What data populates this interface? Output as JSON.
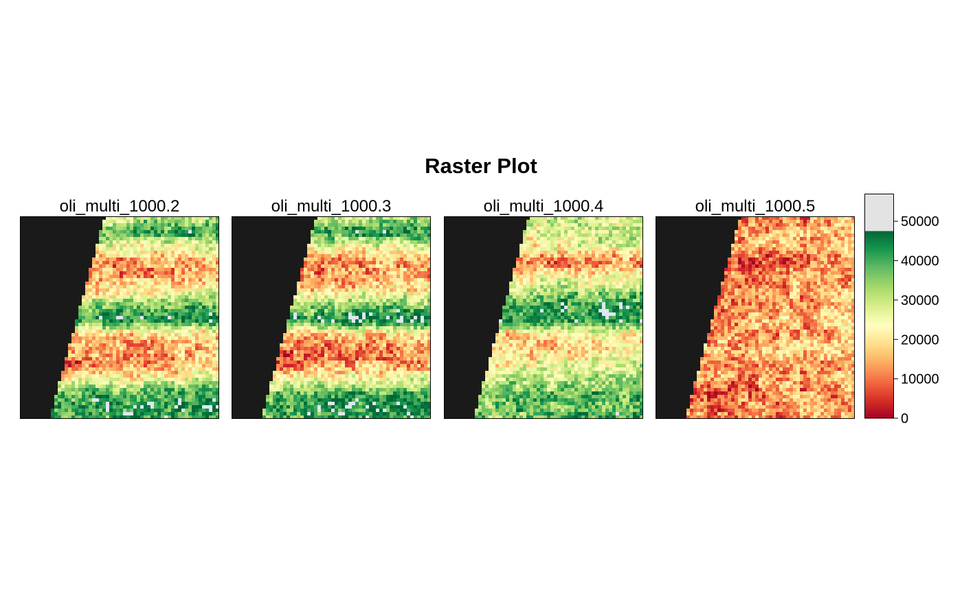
{
  "chart_data": {
    "type": "heatmap",
    "title": "Raster Plot",
    "panels": [
      {
        "name": "oli_multi_1000.2",
        "profile": [
          30,
          40,
          24,
          12,
          14,
          20,
          34,
          46,
          18,
          13,
          12,
          22,
          38,
          44,
          40
        ]
      },
      {
        "name": "oli_multi_1000.3",
        "profile": [
          30,
          40,
          24,
          12,
          13,
          19,
          33,
          46,
          18,
          12,
          12,
          22,
          38,
          44,
          40
        ]
      },
      {
        "name": "oli_multi_1000.4",
        "profile": [
          28,
          26,
          24,
          8,
          22,
          30,
          42,
          44,
          20,
          18,
          24,
          30,
          36,
          38,
          36
        ]
      },
      {
        "name": "oli_multi_1000.5",
        "profile": [
          12,
          14,
          16,
          7,
          12,
          14,
          12,
          14,
          12,
          18,
          12,
          14,
          10,
          12,
          12
        ]
      }
    ],
    "nodata_color": "#1a1a1a",
    "legend": {
      "placement": "right",
      "ticks": [
        "0",
        "10000",
        "20000",
        "30000",
        "40000",
        "50000"
      ],
      "range": [
        0,
        57000
      ],
      "palette_max": 47500,
      "palette": [
        "#a50026",
        "#d73027",
        "#f46d43",
        "#fdae61",
        "#fee08b",
        "#ffffbf",
        "#d9ef8b",
        "#a6d96a",
        "#66bd63",
        "#1a9850",
        "#006837"
      ],
      "overflow_color": "#e3e3e3"
    }
  }
}
